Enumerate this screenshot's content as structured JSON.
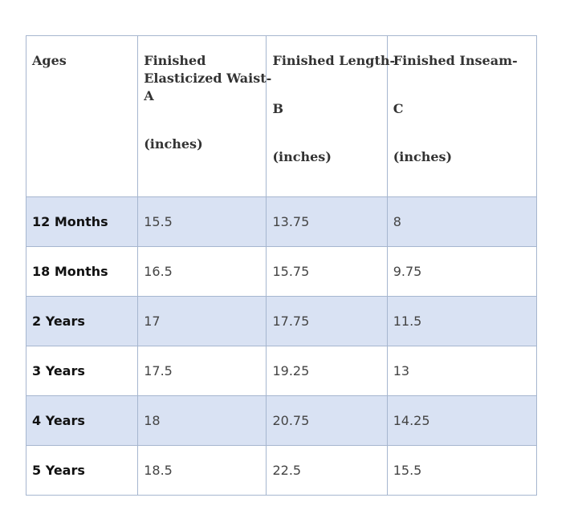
{
  "table": {
    "headers": {
      "ages": "Ages",
      "waist": {
        "line1": "Finished",
        "line2": "Elasticized Waist-",
        "letter": "A",
        "unit": "(inches)"
      },
      "length": {
        "line1": "Finished Length-",
        "letter": "B",
        "unit": "(inches)"
      },
      "inseam": {
        "line1": "Finished Inseam-",
        "letter": "C",
        "unit": "(inches)"
      }
    },
    "rows": [
      {
        "age": "12 Months",
        "waist": "15.5",
        "length": "13.75",
        "inseam": "8"
      },
      {
        "age": "18 Months",
        "waist": "16.5",
        "length": "15.75",
        "inseam": "9.75"
      },
      {
        "age": "2 Years",
        "waist": "17",
        "length": "17.75",
        "inseam": "11.5"
      },
      {
        "age": "3 Years",
        "waist": "17.5",
        "length": "19.25",
        "inseam": "13"
      },
      {
        "age": "4 Years",
        "waist": "18",
        "length": "20.75",
        "inseam": "14.25"
      },
      {
        "age": "5 Years",
        "waist": "18.5",
        "length": "22.5",
        "inseam": "15.5"
      }
    ],
    "colors": {
      "border": "#a6b6cf",
      "shaded_row": "#d9e2f3"
    }
  }
}
